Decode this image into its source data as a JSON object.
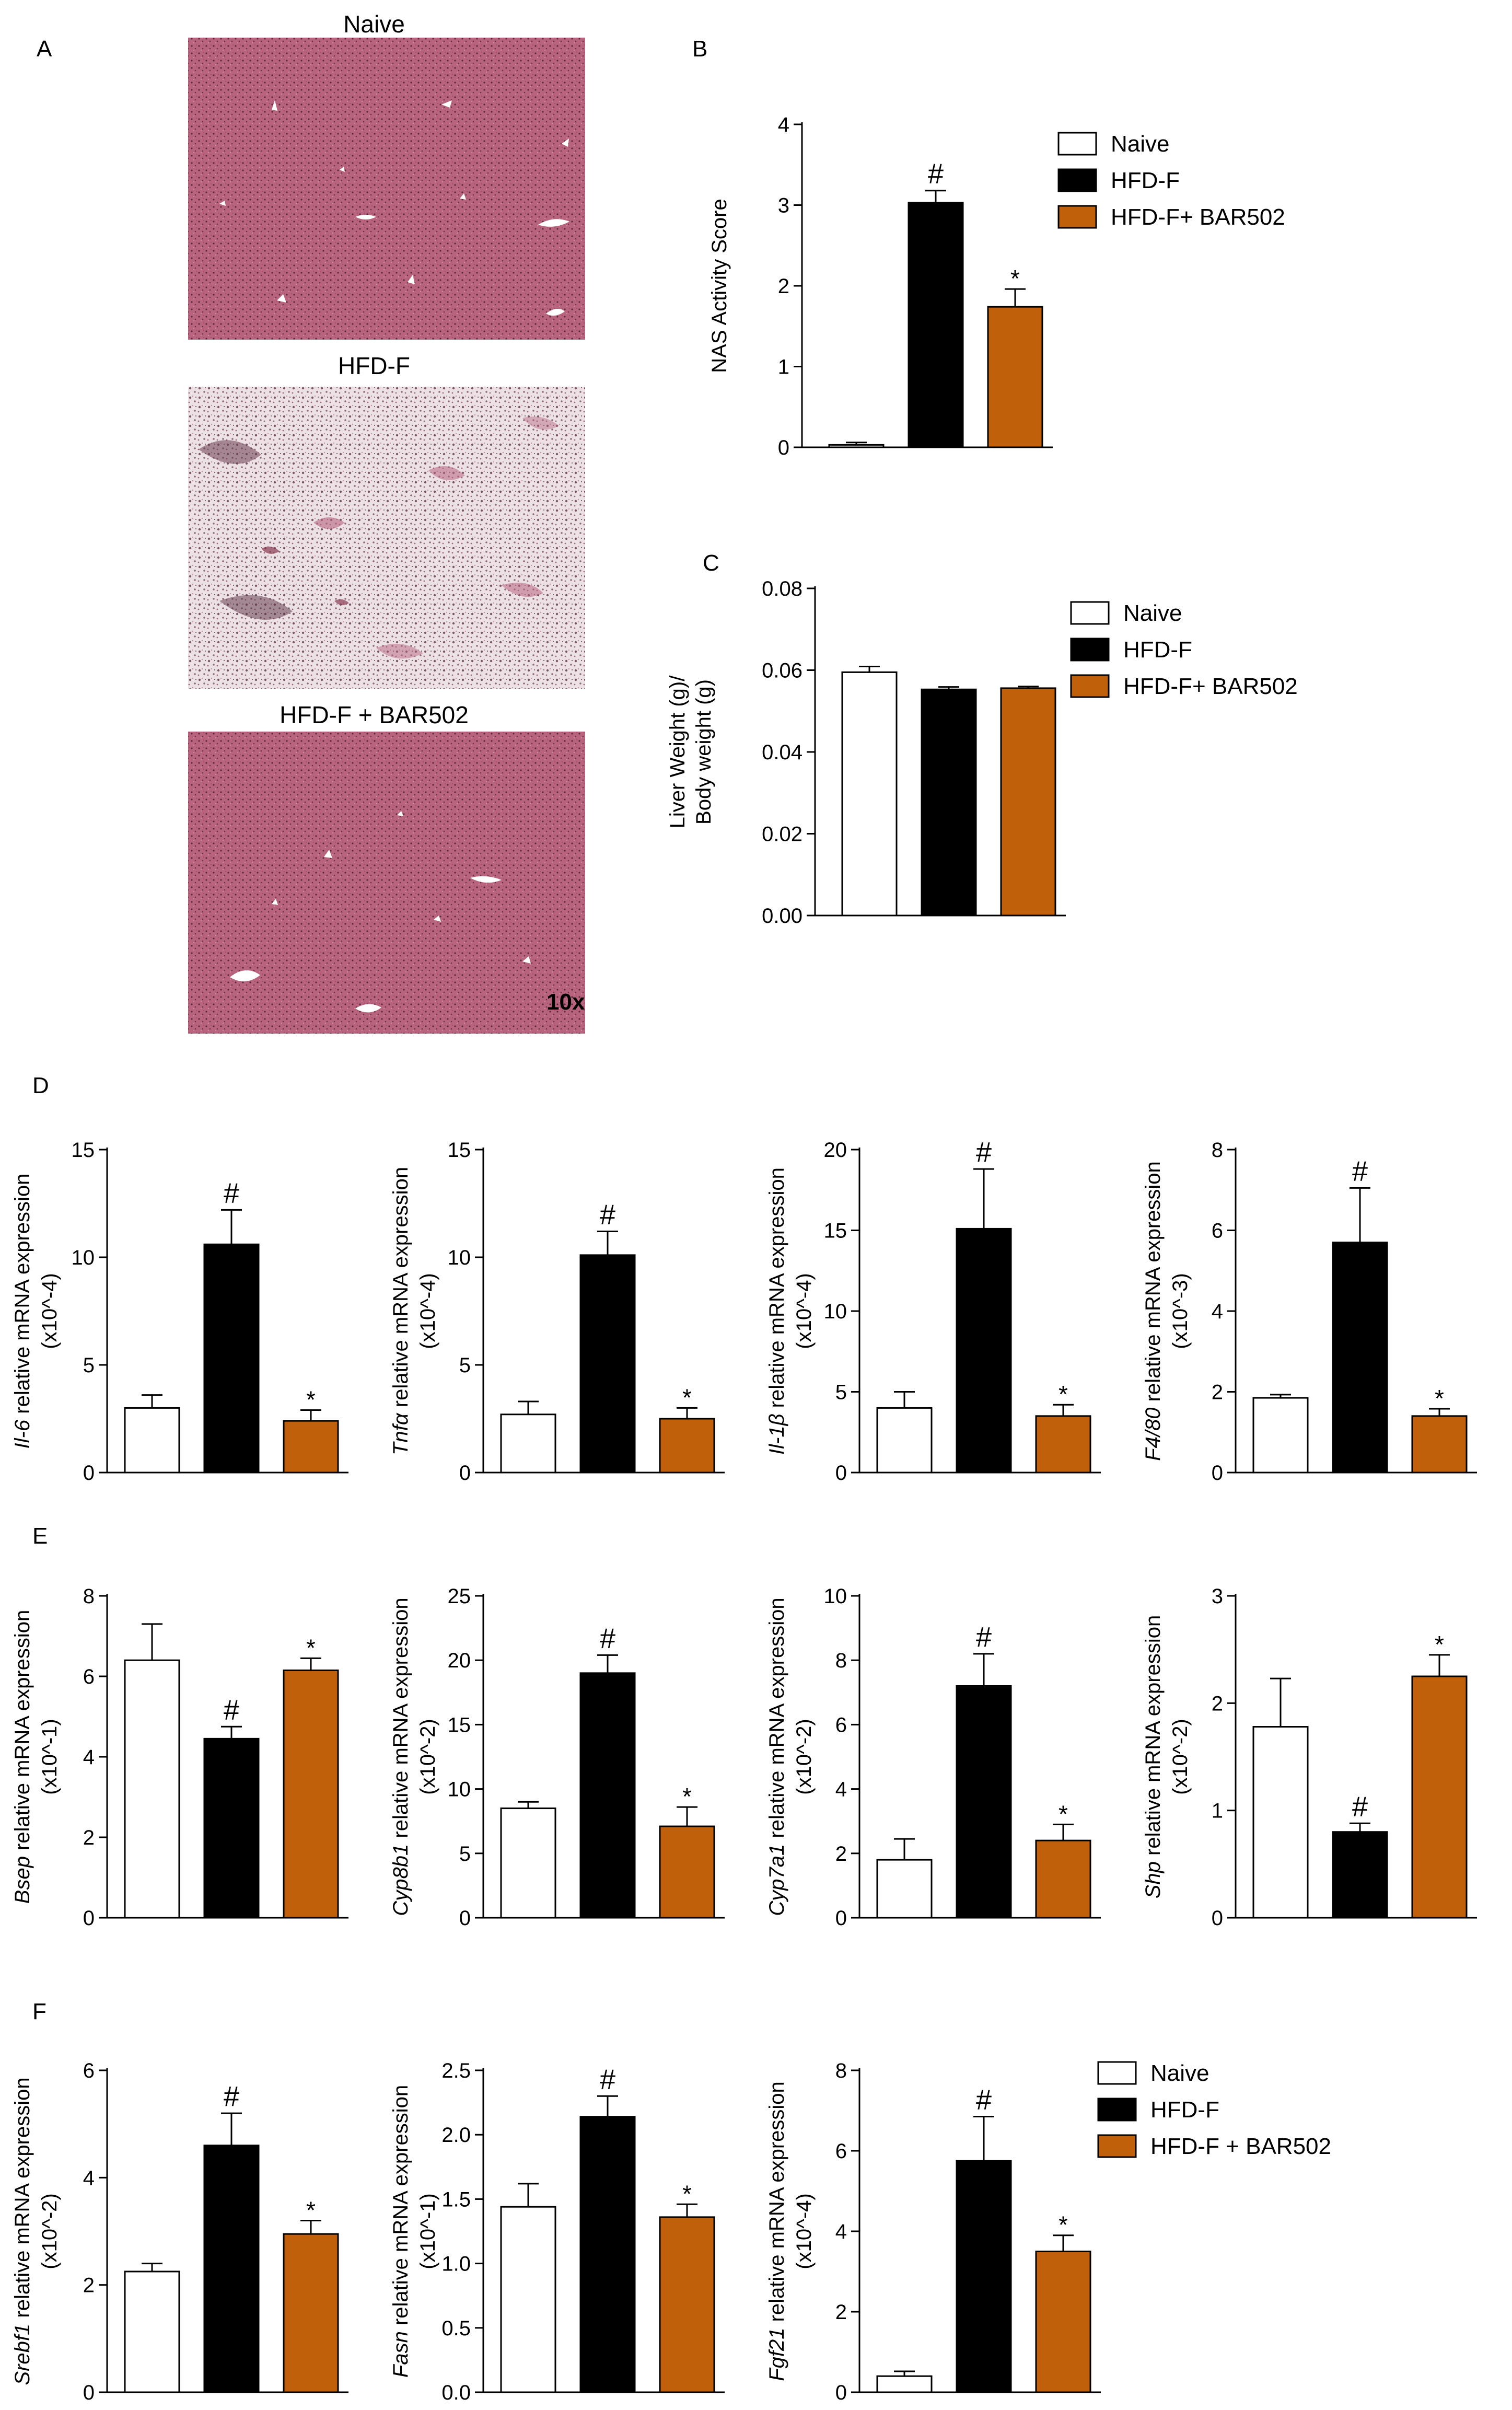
{
  "colors": {
    "naive": "#ffffff",
    "hfd": "#000000",
    "bar": "#c0600a",
    "tissue": "#b8647e",
    "tissue_pale": "#e9d9df"
  },
  "histology": {
    "panel_label": "A",
    "images": [
      {
        "title": "Naive",
        "kind": "normal"
      },
      {
        "title": "HFD-F",
        "kind": "steatosis"
      },
      {
        "title": "HFD-F + BAR502",
        "kind": "normal"
      }
    ],
    "magnification": "10x"
  },
  "legends": {
    "top": [
      "Naive",
      "HFD-F",
      "HFD-F+ BAR502"
    ],
    "bottom": [
      "Naive",
      "HFD-F",
      "HFD-F + BAR502"
    ]
  },
  "chart_data": [
    {
      "id": "B",
      "panel_label": "B",
      "type": "bar",
      "ylabel": [
        "NAS Activity Score"
      ],
      "italic": false,
      "ylim": [
        0,
        4
      ],
      "ticks": [
        "0",
        "1",
        "2",
        "3",
        "4"
      ],
      "categories": [
        "Naive",
        "HFD-F",
        "HFD-F+ BAR502"
      ],
      "values": [
        0.03,
        3.03,
        1.74
      ],
      "errors": [
        0.03,
        0.15,
        0.22
      ],
      "marks": [
        "",
        "#",
        "*"
      ]
    },
    {
      "id": "C",
      "panel_label": "C",
      "type": "bar",
      "ylabel": [
        "Liver Weight (g)/",
        "Body weight (g)"
      ],
      "italic": false,
      "ylim": [
        0,
        0.08
      ],
      "ticks": [
        "0.00",
        "0.02",
        "0.04",
        "0.06",
        "0.08"
      ],
      "categories": [
        "Naive",
        "HFD-F",
        "HFD-F+ BAR502"
      ],
      "values": [
        0.0595,
        0.0553,
        0.0556
      ],
      "errors": [
        0.0014,
        0.0006,
        0.0004
      ],
      "marks": [
        "",
        "",
        ""
      ]
    },
    {
      "id": "D1",
      "panel_label": "D",
      "type": "bar",
      "ylabel": [
        "Il-6",
        " relative mRNA expression",
        "(x10^-4)"
      ],
      "italic": true,
      "ylim": [
        0,
        15
      ],
      "ticks": [
        "0",
        "5",
        "10",
        "15"
      ],
      "categories": [
        "Naive",
        "HFD-F",
        "HFD-F + BAR502"
      ],
      "values": [
        3.0,
        10.6,
        2.4
      ],
      "errors": [
        0.6,
        1.6,
        0.5
      ],
      "marks": [
        "",
        "#",
        "*"
      ]
    },
    {
      "id": "D2",
      "panel_label": "",
      "type": "bar",
      "ylabel": [
        "Tnfα",
        " relative mRNA expression",
        "(x10^-4)"
      ],
      "italic": true,
      "ylim": [
        0,
        15
      ],
      "ticks": [
        "0",
        "5",
        "10",
        "15"
      ],
      "categories": [
        "Naive",
        "HFD-F",
        "HFD-F + BAR502"
      ],
      "values": [
        2.7,
        10.1,
        2.5
      ],
      "errors": [
        0.6,
        1.1,
        0.5
      ],
      "marks": [
        "",
        "#",
        "*"
      ]
    },
    {
      "id": "D3",
      "panel_label": "",
      "type": "bar",
      "ylabel": [
        "Il-1β",
        " relative mRNA expression",
        "(x10^-4)"
      ],
      "italic": true,
      "ylim": [
        0,
        20
      ],
      "ticks": [
        "0",
        "5",
        "10",
        "15",
        "20"
      ],
      "categories": [
        "Naive",
        "HFD-F",
        "HFD-F + BAR502"
      ],
      "values": [
        4.0,
        15.1,
        3.5
      ],
      "errors": [
        1.0,
        3.7,
        0.7
      ],
      "marks": [
        "",
        "#",
        "*"
      ]
    },
    {
      "id": "D4",
      "panel_label": "",
      "type": "bar",
      "ylabel": [
        "F4/80",
        " relative mRNA expression",
        "(x10^-3)"
      ],
      "italic": true,
      "ylim": [
        0,
        8
      ],
      "ticks": [
        "0",
        "2",
        "4",
        "6",
        "8"
      ],
      "categories": [
        "Naive",
        "HFD-F",
        "HFD-F + BAR502"
      ],
      "values": [
        1.85,
        5.7,
        1.4
      ],
      "errors": [
        0.08,
        1.35,
        0.18
      ],
      "marks": [
        "",
        "#",
        "*"
      ]
    },
    {
      "id": "E1",
      "panel_label": "E",
      "type": "bar",
      "ylabel": [
        "Bsep",
        " relative mRNA expression",
        "(x10^-1)"
      ],
      "italic": true,
      "ylim": [
        0,
        8
      ],
      "ticks": [
        "0",
        "2",
        "4",
        "6",
        "8"
      ],
      "categories": [
        "Naive",
        "HFD-F",
        "HFD-F + BAR502"
      ],
      "values": [
        6.4,
        4.45,
        6.15
      ],
      "errors": [
        0.9,
        0.3,
        0.3
      ],
      "marks": [
        "",
        "#",
        "*"
      ]
    },
    {
      "id": "E2",
      "panel_label": "",
      "type": "bar",
      "ylabel": [
        "Cyp8b1",
        " relative mRNA expression",
        "(x10^-2)"
      ],
      "italic": true,
      "ylim": [
        0,
        25
      ],
      "ticks": [
        "0",
        "5",
        "10",
        "15",
        "20",
        "25"
      ],
      "categories": [
        "Naive",
        "HFD-F",
        "HFD-F + BAR502"
      ],
      "values": [
        8.5,
        19.0,
        7.1
      ],
      "errors": [
        0.5,
        1.4,
        1.5
      ],
      "marks": [
        "",
        "#",
        "*"
      ]
    },
    {
      "id": "E3",
      "panel_label": "",
      "type": "bar",
      "ylabel": [
        "Cyp7a1",
        " relative mRNA expression",
        "(x10^-2)"
      ],
      "italic": true,
      "ylim": [
        0,
        10
      ],
      "ticks": [
        "0",
        "2",
        "4",
        "6",
        "8",
        "10"
      ],
      "categories": [
        "Naive",
        "HFD-F",
        "HFD-F + BAR502"
      ],
      "values": [
        1.8,
        7.2,
        2.4
      ],
      "errors": [
        0.65,
        1.0,
        0.5
      ],
      "marks": [
        "",
        "#",
        "*"
      ]
    },
    {
      "id": "E4",
      "panel_label": "",
      "type": "bar",
      "ylabel": [
        "Shp",
        " relative mRNA expression",
        "(x10^-2)"
      ],
      "italic": true,
      "ylim": [
        0,
        3
      ],
      "ticks": [
        "0",
        "1",
        "2",
        "3"
      ],
      "categories": [
        "Naive",
        "HFD-F",
        "HFD-F + BAR502"
      ],
      "values": [
        1.78,
        0.8,
        2.25
      ],
      "errors": [
        0.45,
        0.08,
        0.2
      ],
      "marks": [
        "",
        "#",
        "*"
      ]
    },
    {
      "id": "F1",
      "panel_label": "F",
      "type": "bar",
      "ylabel": [
        "Srebf1",
        " relative mRNA expression",
        "(x10^-2)"
      ],
      "italic": true,
      "ylim": [
        0,
        6
      ],
      "ticks": [
        "0",
        "2",
        "4",
        "6"
      ],
      "categories": [
        "Naive",
        "HFD-F",
        "HFD-F + BAR502"
      ],
      "values": [
        2.25,
        4.6,
        2.95
      ],
      "errors": [
        0.15,
        0.6,
        0.25
      ],
      "marks": [
        "",
        "#",
        "*"
      ]
    },
    {
      "id": "F2",
      "panel_label": "",
      "type": "bar",
      "ylabel": [
        "Fasn",
        " relative mRNA expression",
        "(x10^-1)"
      ],
      "italic": true,
      "ylim": [
        0,
        2.5
      ],
      "ticks": [
        "0.0",
        "0.5",
        "1.0",
        "1.5",
        "2.0",
        "2.5"
      ],
      "categories": [
        "Naive",
        "HFD-F",
        "HFD-F + BAR502"
      ],
      "values": [
        1.44,
        2.14,
        1.36
      ],
      "errors": [
        0.18,
        0.16,
        0.1
      ],
      "marks": [
        "",
        "#",
        "*"
      ]
    },
    {
      "id": "F3",
      "panel_label": "",
      "type": "bar",
      "ylabel": [
        "Fgf21",
        " relative mRNA expression",
        "(x10^-4)"
      ],
      "italic": true,
      "ylim": [
        0,
        8
      ],
      "ticks": [
        "0",
        "2",
        "4",
        "6",
        "8"
      ],
      "categories": [
        "Naive",
        "HFD-F",
        "HFD-F + BAR502"
      ],
      "values": [
        0.4,
        5.75,
        3.5
      ],
      "errors": [
        0.12,
        1.1,
        0.4
      ],
      "marks": [
        "",
        "#",
        "*"
      ]
    }
  ]
}
